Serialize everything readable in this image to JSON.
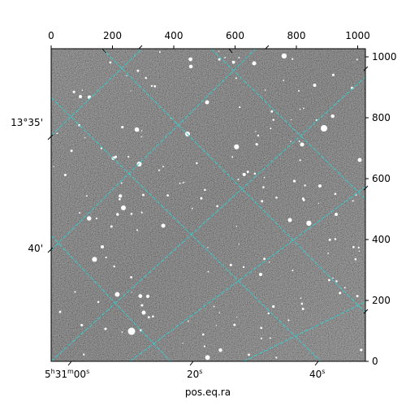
{
  "figure": {
    "xlabel": "pos.eq.ra",
    "top_ticks": [
      "0",
      "200",
      "400",
      "600",
      "800",
      "1000"
    ],
    "right_ticks": [
      "0",
      "200",
      "400",
      "600",
      "800",
      "1000"
    ],
    "dec_labels": [
      "13°35'",
      "40'"
    ],
    "ra_labels": [
      {
        "h": "5",
        "hu": "h",
        "m": "31",
        "mu": "m",
        "s": "00",
        "su": "s"
      },
      {
        "s": "20",
        "su": "s"
      },
      {
        "s": "40",
        "su": "s"
      }
    ],
    "pixel_range": [
      0,
      1024
    ],
    "grid_color": "#33cccc",
    "star_color": "#ffffff"
  },
  "chart_data": {
    "type": "image",
    "xlabel": "pos.eq.ra",
    "top_axis_ticks": [
      0,
      200,
      400,
      600,
      800,
      1000
    ],
    "right_axis_ticks": [
      0,
      200,
      400,
      600,
      800,
      1000
    ],
    "pixel_range": [
      0,
      1024
    ],
    "dec_ticks": [
      "13°35'",
      "40'"
    ],
    "ra_ticks": [
      "5h31m00s",
      "20s",
      "40s"
    ],
    "grid": true
  }
}
